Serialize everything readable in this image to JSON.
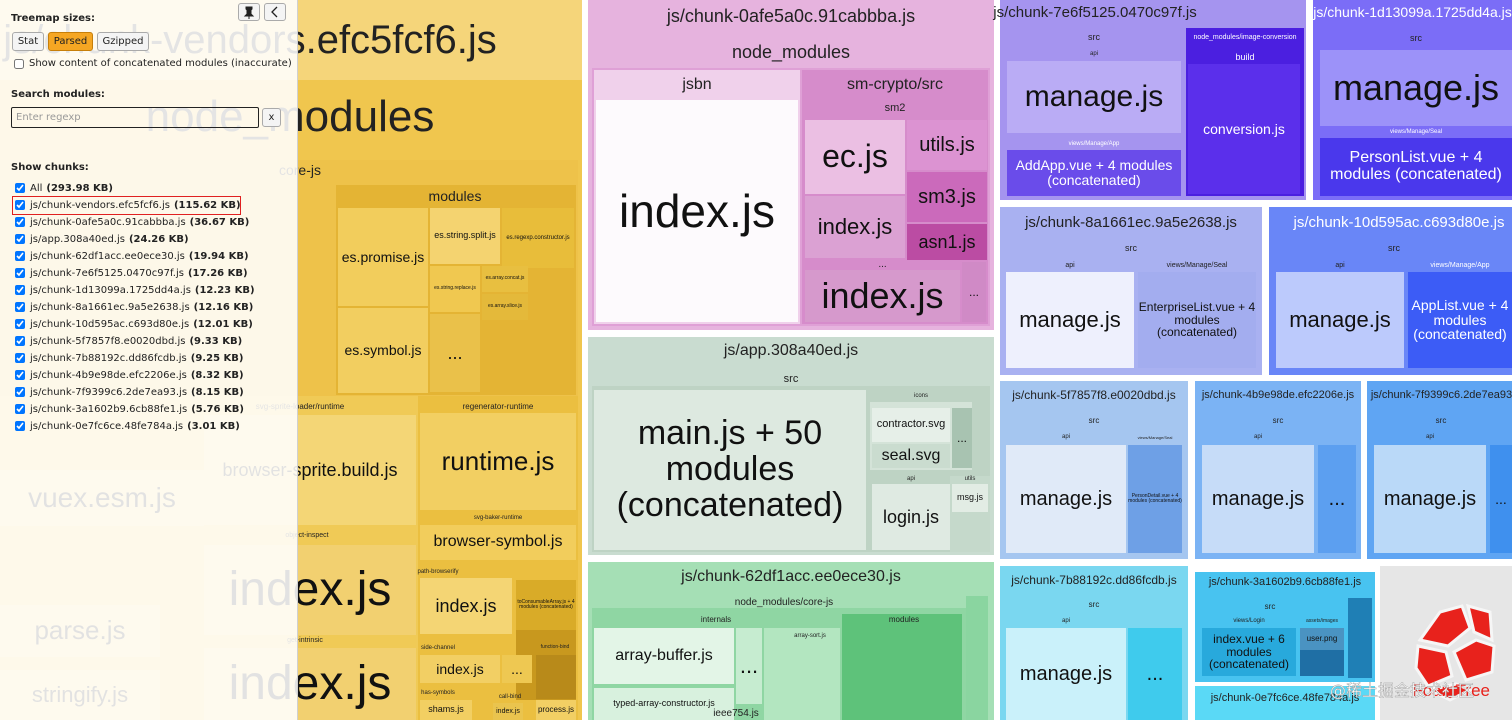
{
  "sidebar": {
    "treemap_sizes_label": "Treemap sizes:",
    "size_buttons": [
      "Stat",
      "Parsed",
      "Gzipped"
    ],
    "active_size_index": 1,
    "concat_checkbox_label": "Show content of concatenated modules (inaccurate)",
    "concat_checked": false,
    "search_label": "Search modules:",
    "search_placeholder": "Enter regexp",
    "clear_button": "x",
    "chunks_label": "Show chunks:",
    "chunks": [
      {
        "name": "All",
        "size": "(293.98 KB)",
        "checked": true
      },
      {
        "name": "js/chunk-vendors.efc5fcf6.js",
        "size": "(115.62 KB)",
        "checked": true
      },
      {
        "name": "js/chunk-0afe5a0c.91cabbba.js",
        "size": "(36.67 KB)",
        "checked": true
      },
      {
        "name": "js/app.308a40ed.js",
        "size": "(24.26 KB)",
        "checked": true
      },
      {
        "name": "js/chunk-62df1acc.ee0ece30.js",
        "size": "(19.94 KB)",
        "checked": true
      },
      {
        "name": "js/chunk-7e6f5125.0470c97f.js",
        "size": "(17.26 KB)",
        "checked": true
      },
      {
        "name": "js/chunk-1d13099a.1725dd4a.js",
        "size": "(12.23 KB)",
        "checked": true
      },
      {
        "name": "js/chunk-8a1661ec.9a5e2638.js",
        "size": "(12.16 KB)",
        "checked": true
      },
      {
        "name": "js/chunk-10d595ac.c693d80e.js",
        "size": "(12.01 KB)",
        "checked": true
      },
      {
        "name": "js/chunk-5f7857f8.e0020dbd.js",
        "size": "(9.33 KB)",
        "checked": true
      },
      {
        "name": "js/chunk-7b88192c.dd86fcdb.js",
        "size": "(9.25 KB)",
        "checked": true
      },
      {
        "name": "js/chunk-4b9e98de.efc2206e.js",
        "size": "(8.32 KB)",
        "checked": true
      },
      {
        "name": "js/chunk-7f9399c6.2de7ea93.js",
        "size": "(8.15 KB)",
        "checked": true
      },
      {
        "name": "js/chunk-3a1602b9.6cb88fe1.js",
        "size": "(5.76 KB)",
        "checked": true
      },
      {
        "name": "js/chunk-0e7fc6ce.48fe784a.js",
        "size": "(3.01 KB)",
        "checked": true
      }
    ]
  },
  "treemap": {
    "nodes": [
      "js/chunk-vendors.efc5fcf6.js",
      "node_modules",
      "core-js",
      "modules",
      "es.promise.js",
      "es.string.split.js",
      "es.regexp.constructor.js",
      "es.string.replace.js",
      "es.array.concat.js",
      "es.array.slice.js",
      "es.symbol.js",
      "...",
      "svg-sprite-loader/runtime",
      "browser-sprite.build.js",
      "regenerator-runtime",
      "runtime.js",
      "svg-baker-runtime",
      "browser-symbol.js",
      "object-inspect",
      "index.js",
      "get-intrinsic",
      "index.js",
      "path-browserify",
      "index.js",
      "toConsumableArray.js + 4 modules (concatenated)",
      "side-channel",
      "index.js",
      "...",
      "function-bind",
      "has-symbols",
      "shams.js",
      "call-bind",
      "index.js",
      "process.js",
      "vuex.esm.js",
      "parse.js",
      "stringify.js",
      "js/chunk-0afe5a0c.91cabbba.js",
      "node_modules",
      "jsbn",
      "index.js",
      "sm-crypto/src",
      "sm2",
      "ec.js",
      "index.js",
      "utils.js",
      "sm3.js",
      "asn1.js",
      "...",
      "index.js",
      "...",
      "js/app.308a40ed.js",
      "src",
      "main.js + 50 modules (concatenated)",
      "icons",
      "contractor.svg",
      "seal.svg",
      "...",
      "api",
      "login.js",
      "utils",
      "msg.js",
      "js/chunk-62df1acc.ee0ece30.js",
      "node_modules/core-js",
      "internals",
      "array-buffer.js",
      "...",
      "typed-array-constructor.js",
      "array-sort.js",
      "ieee754.js",
      "modules",
      "js/chunk-7e6f5125.0470c97f.js",
      "src",
      "api",
      "manage.js",
      "views/Manage/App",
      "AddApp.vue + 4 modules (concatenated)",
      "node_modules/image-conversion",
      "build",
      "conversion.js",
      "js/chunk-1d13099a.1725dd4a.js",
      "src",
      "manage.js",
      "views/Manage/Seal",
      "PersonList.vue + 4 modules (concatenated)",
      "js/chunk-8a1661ec.9a5e2638.js",
      "src",
      "api",
      "manage.js",
      "views/Manage/Seal",
      "EnterpriseList.vue + 4 modules (concatenated)",
      "js/chunk-10d595ac.c693d80e.js",
      "src",
      "api",
      "manage.js",
      "views/Manage/App",
      "AppList.vue + 4 modules (concatenated)",
      "js/chunk-5f7857f8.e0020dbd.js",
      "src",
      "api",
      "manage.js",
      "views/Manage/Seal",
      "PersonDetail.vue + 4 modules (concatenated)",
      "js/chunk-4b9e98de.efc2206e.js",
      "src",
      "api",
      "manage.js",
      "...",
      "js/chunk-7f9399c6.2de7ea93.js",
      "src",
      "api",
      "manage.js",
      "...",
      "js/chunk-7b88192c.dd86fcdb.js",
      "src",
      "api",
      "manage.js",
      "...",
      "js/chunk-3a1602b9.6cb88fe1.js",
      "src",
      "views/Login",
      "index.vue + 6 modules (concatenated)",
      "assets/images",
      "user.png",
      "js/chunk-0e7fc6ce.48fe784a.js"
    ],
    "logo_text": "FoamTree",
    "watermark": "@稀土掘金技术社区"
  }
}
